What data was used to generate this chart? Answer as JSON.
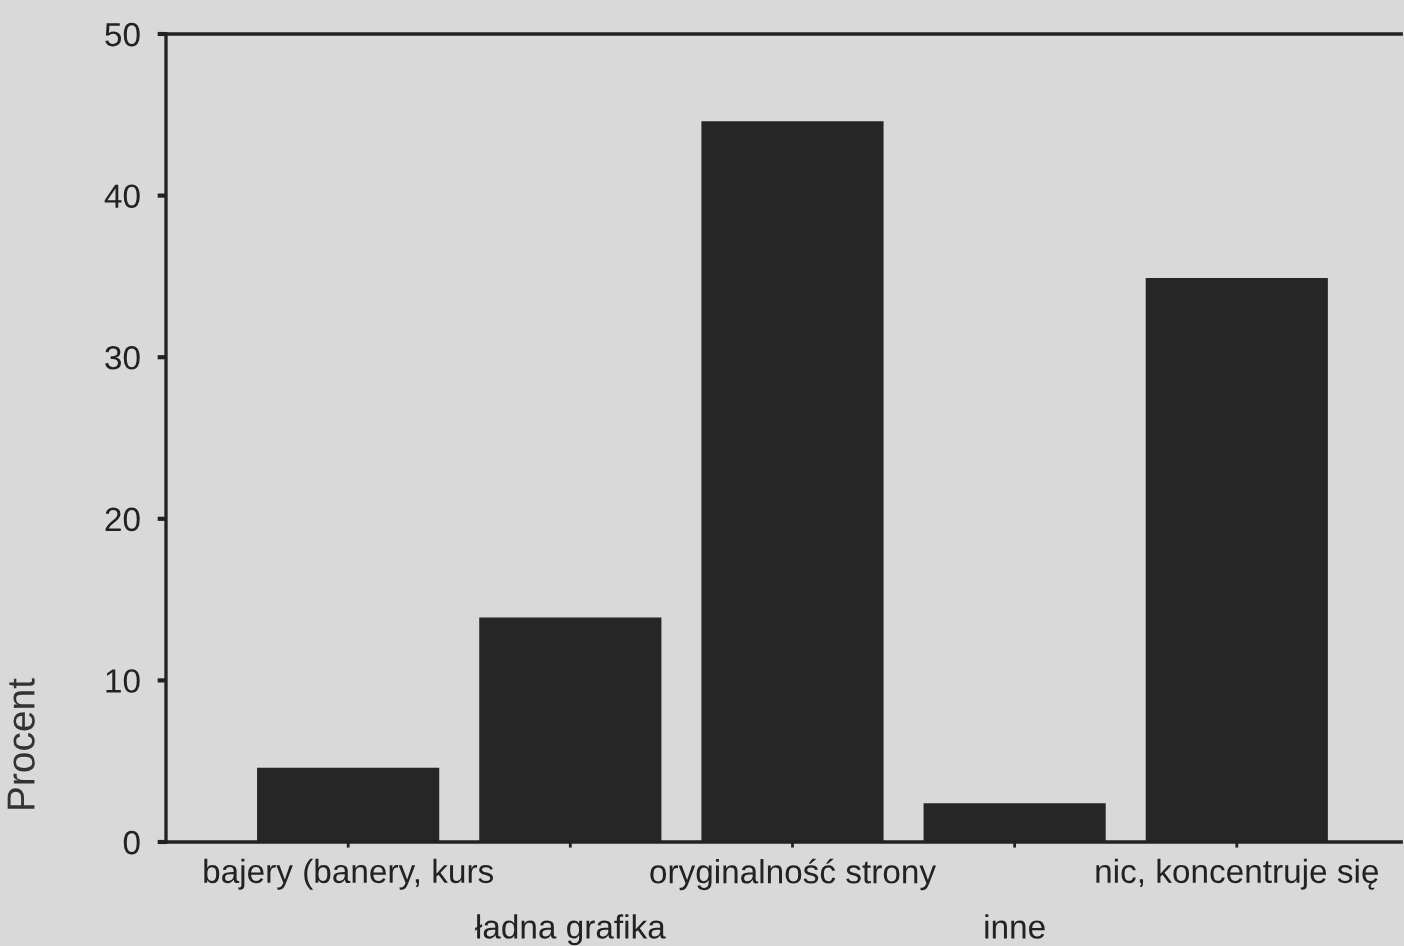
{
  "chart_data": {
    "type": "bar",
    "ylabel": "Procent",
    "categories": [
      "bajery (banery, kurs",
      "ładna grafika",
      "oryginalność strony",
      "inne",
      "nic, koncentruje się"
    ],
    "values": [
      4.6,
      13.9,
      44.6,
      2.4,
      34.9
    ],
    "color": "#262626",
    "ylim": [
      0,
      50
    ],
    "yticks": [
      0,
      10,
      20,
      30,
      40,
      50
    ]
  }
}
